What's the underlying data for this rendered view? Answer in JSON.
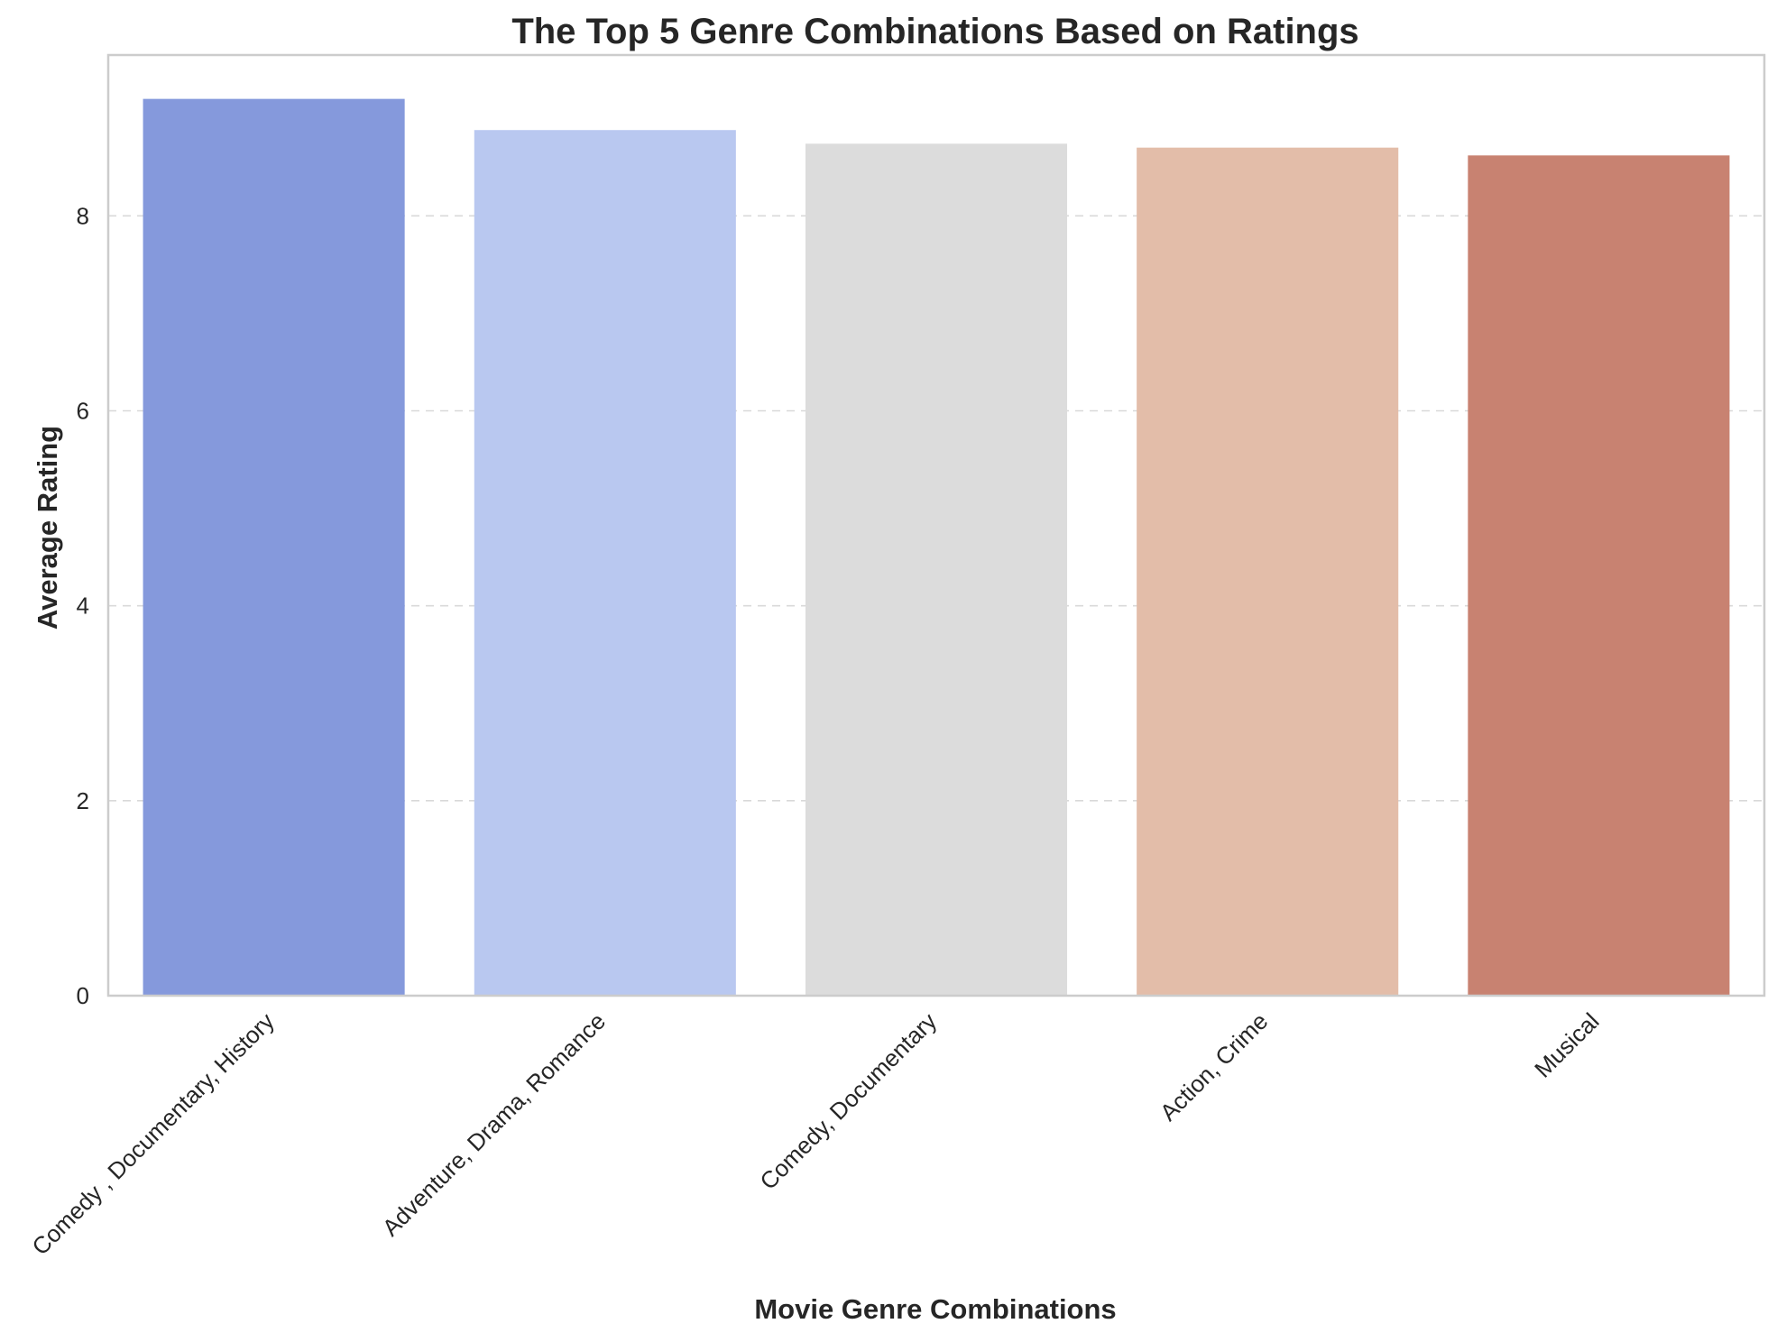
{
  "chart_data": {
    "type": "bar",
    "title": "The Top 5 Genre Combinations Based on Ratings",
    "xlabel": "Movie Genre Combinations",
    "ylabel": "Average Rating",
    "categories": [
      "Comedy , Documentary, History",
      "Adventure, Drama, Romance",
      "Comedy, Documentary",
      "Action, Crime",
      "Musical"
    ],
    "values": [
      9.2,
      8.88,
      8.74,
      8.7,
      8.62
    ],
    "colors": [
      "#8599dc",
      "#b9c8f0",
      "#dcdcdc",
      "#e3bda9",
      "#c88271"
    ],
    "ylim": [
      0,
      9.65
    ],
    "yticks": [
      0,
      2,
      4,
      6,
      8
    ],
    "grid": true,
    "legend": "none"
  }
}
